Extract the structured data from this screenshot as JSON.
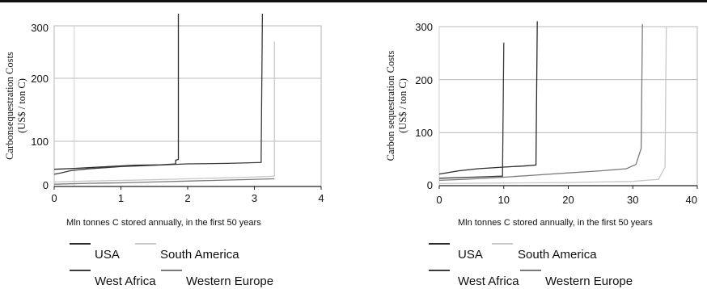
{
  "chart_data": [
    {
      "type": "line",
      "title": "",
      "xlabel": "Mln tonnes C stored annually, in the first 50 years",
      "ylabel_line1": "Carbonsequestration Costs",
      "ylabel_line2": "(US$ / ton C)",
      "xlim": [
        0,
        4
      ],
      "ylim": [
        0,
        300
      ],
      "x_ticks": [
        0,
        1,
        2,
        3,
        4
      ],
      "y_ticks": [
        0,
        100,
        200,
        300
      ],
      "y_ticks_labeled": [
        0,
        100,
        200,
        300
      ],
      "legend": [
        "USA",
        "South America",
        "West Africa",
        "Western Europe"
      ],
      "legend_position": "bottom",
      "grid": true,
      "series": [
        {
          "name": "USA",
          "color": "#2b2b2b",
          "points": [
            [
              0,
              38
            ],
            [
              0.3,
              40
            ],
            [
              0.8,
              44
            ],
            [
              1.2,
              47
            ],
            [
              1.6,
              48
            ],
            [
              1.82,
              50
            ],
            [
              1.82,
              58
            ],
            [
              1.86,
              60
            ],
            [
              1.86,
              330
            ]
          ]
        },
        {
          "name": "South America",
          "color": "#c8c8c8",
          "points": [
            [
              0,
              10
            ],
            [
              0.5,
              12
            ],
            [
              1.2,
              14
            ],
            [
              2.0,
              17
            ],
            [
              2.8,
              20
            ],
            [
              3.2,
              22
            ],
            [
              3.3,
              23
            ],
            [
              3.3,
              270
            ]
          ]
        },
        {
          "name": "West Africa",
          "color": "#3a3a3a",
          "points": [
            [
              0,
              27
            ],
            [
              0.1,
              30
            ],
            [
              0.25,
              35
            ],
            [
              0.5,
              39
            ],
            [
              1.0,
              44
            ],
            [
              1.5,
              47
            ],
            [
              2.0,
              50
            ],
            [
              2.6,
              51
            ],
            [
              3.1,
              53
            ],
            [
              3.12,
              330
            ]
          ]
        },
        {
          "name": "Western Europe",
          "color": "#7a7a7a",
          "points": [
            [
              0,
              5
            ],
            [
              0.5,
              7
            ],
            [
              1.0,
              8
            ],
            [
              1.5,
              10
            ],
            [
              2.0,
              12
            ],
            [
              2.8,
              15
            ],
            [
              3.3,
              17
            ]
          ]
        }
      ]
    },
    {
      "type": "line",
      "title": "",
      "xlabel": "Mln tonnes C stored annually, in the first 50 years",
      "ylabel_line1": "Carbon sequestration Costs",
      "ylabel_line2": "(US$ / ton C)",
      "xlim": [
        0,
        40
      ],
      "ylim": [
        0,
        300
      ],
      "x_ticks": [
        0,
        10,
        20,
        30,
        40
      ],
      "y_ticks": [
        0,
        100,
        200,
        300
      ],
      "legend": [
        "USA",
        "South America",
        "West Africa",
        "Western Europe"
      ],
      "legend_position": "bottom",
      "grid": true,
      "series": [
        {
          "name": "USA",
          "color": "#2b2b2b",
          "points": [
            [
              0,
              22
            ],
            [
              3,
              28
            ],
            [
              6,
              32
            ],
            [
              10,
              35
            ],
            [
              13,
              37
            ],
            [
              15,
              39
            ],
            [
              15,
              45
            ],
            [
              15.2,
              310
            ]
          ]
        },
        {
          "name": "South America",
          "color": "#c8c8c8",
          "points": [
            [
              0,
              4
            ],
            [
              10,
              5
            ],
            [
              20,
              6
            ],
            [
              30,
              8
            ],
            [
              34,
              12
            ],
            [
              35,
              35
            ],
            [
              35.2,
              300
            ]
          ]
        },
        {
          "name": "West Africa",
          "color": "#3a3a3a",
          "points": [
            [
              0,
              14
            ],
            [
              5,
              16
            ],
            [
              9.8,
              18
            ],
            [
              10,
              270
            ]
          ]
        },
        {
          "name": "Western Europe",
          "color": "#7a7a7a",
          "points": [
            [
              0,
              10
            ],
            [
              4,
              12
            ],
            [
              10,
              16
            ],
            [
              15,
              20
            ],
            [
              20,
              24
            ],
            [
              25,
              28
            ],
            [
              29,
              32
            ],
            [
              30.5,
              40
            ],
            [
              31.3,
              70
            ],
            [
              31.5,
              305
            ]
          ]
        }
      ]
    }
  ]
}
